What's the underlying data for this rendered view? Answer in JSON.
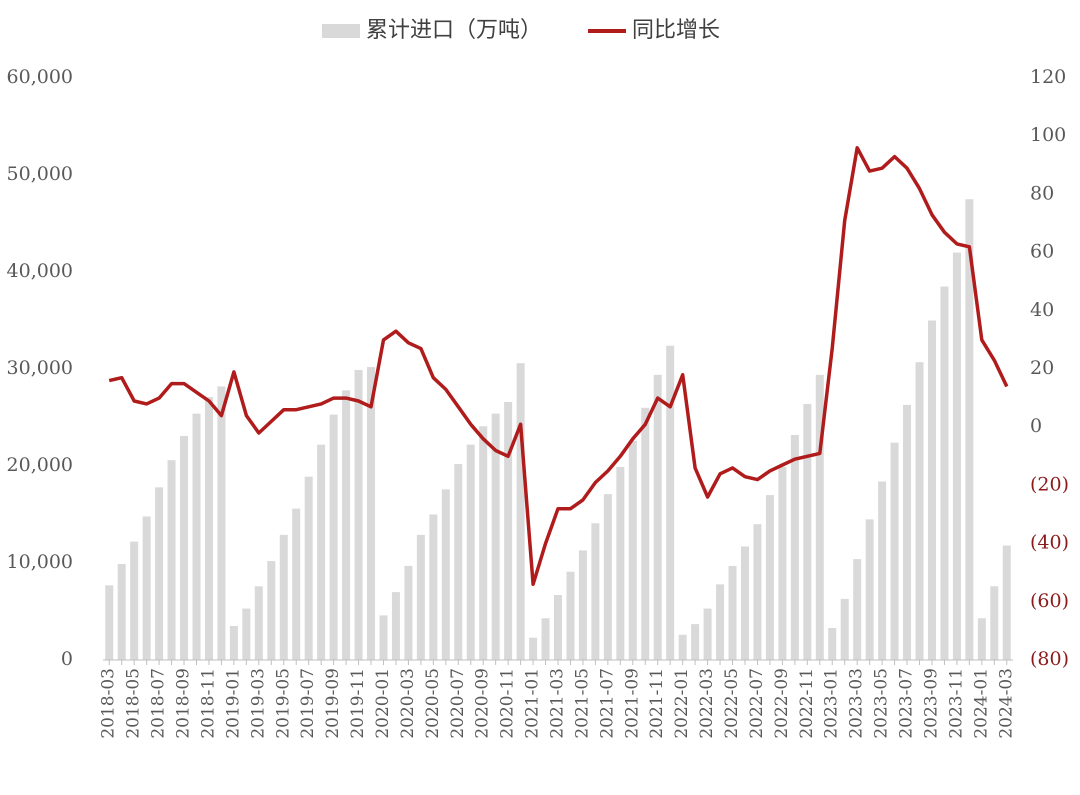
{
  "chart_data": {
    "type": "bar-line",
    "legend": "top",
    "categories": [
      "2018-03",
      null,
      "2018-05",
      null,
      "2018-07",
      null,
      "2018-09",
      null,
      "2018-11",
      null,
      "2019-01",
      null,
      "2019-03",
      null,
      "2019-05",
      null,
      "2019-07",
      null,
      "2019-09",
      null,
      "2019-11",
      null,
      "2020-01",
      null,
      "2020-03",
      null,
      "2020-05",
      null,
      "2020-07",
      null,
      "2020-09",
      null,
      "2020-11",
      null,
      "2021-01",
      null,
      "2021-03",
      null,
      "2021-05",
      null,
      "2021-07",
      null,
      "2021-09",
      null,
      "2021-11",
      null,
      "2022-01",
      null,
      "2022-03",
      null,
      "2022-05",
      null,
      "2022-07",
      null,
      "2022-09",
      null,
      "2022-11",
      null,
      "2023-01",
      null,
      "2023-03",
      null,
      "2023-05",
      null,
      "2023-07",
      null,
      "2023-09",
      null,
      "2023-11",
      null,
      "2024-01",
      null,
      "2024-03"
    ],
    "series": [
      {
        "name": "累计进口（万吨）",
        "type": "bar",
        "color": "#d9d9d9",
        "values": [
          7700,
          9900,
          12200,
          14800,
          17800,
          20600,
          23100,
          25400,
          27100,
          28200,
          3500,
          5300,
          7600,
          10200,
          12900,
          15600,
          18900,
          22200,
          25300,
          27800,
          29900,
          30200,
          4600,
          7000,
          9700,
          12900,
          15000,
          17600,
          20200,
          22200,
          24100,
          25400,
          26600,
          30600,
          2300,
          4300,
          6700,
          9100,
          11300,
          14100,
          17100,
          19900,
          22600,
          26000,
          29400,
          32400,
          2600,
          3700,
          5300,
          7800,
          9700,
          11700,
          14000,
          17000,
          19900,
          23200,
          26400,
          29400,
          3300,
          6300,
          10400,
          14500,
          18400,
          22400,
          26300,
          30700,
          35000,
          38500,
          42000,
          47500,
          4300,
          7600,
          11800
        ]
      },
      {
        "name": "同比增长",
        "type": "line",
        "axis": "y2",
        "color": "#b01c1c",
        "values": [
          16,
          17,
          9,
          8,
          10,
          15,
          15,
          12,
          9,
          4,
          19,
          4,
          -2,
          2,
          6,
          6,
          7,
          8,
          10,
          10,
          9,
          7,
          30,
          33,
          29,
          27,
          17,
          13,
          7,
          1,
          -4,
          -8,
          -10,
          1,
          -54,
          -40,
          -28,
          -28,
          -25,
          -19,
          -15,
          -10,
          -4,
          1,
          10,
          7,
          18,
          -14,
          -24,
          -16,
          -14,
          -17,
          -18,
          -15,
          -13,
          -11,
          -10,
          -9,
          27,
          71,
          96,
          88,
          89,
          93,
          89,
          82,
          73,
          67,
          63,
          62,
          30,
          23,
          14
        ]
      }
    ],
    "ylim": [
      0,
      60000
    ],
    "yticks": [
      0,
      {
        "value": 10000,
        "label": "10,000"
      },
      {
        "value": 20000,
        "label": "20,000"
      },
      {
        "value": 30000,
        "label": "30,000"
      },
      {
        "value": 40000,
        "label": "40,000"
      },
      {
        "value": 50000,
        "label": "50,000"
      },
      {
        "value": 60000,
        "label": "60,000"
      }
    ],
    "y2lim": [
      -80,
      120
    ],
    "y2ticks": [
      {
        "value": -80,
        "label": "(80)"
      },
      {
        "value": -60,
        "label": "(60)"
      },
      {
        "value": -40,
        "label": "(40)"
      },
      {
        "value": -20,
        "label": "(20)"
      },
      0,
      20,
      40,
      60,
      80,
      100,
      120
    ],
    "grid": false
  }
}
